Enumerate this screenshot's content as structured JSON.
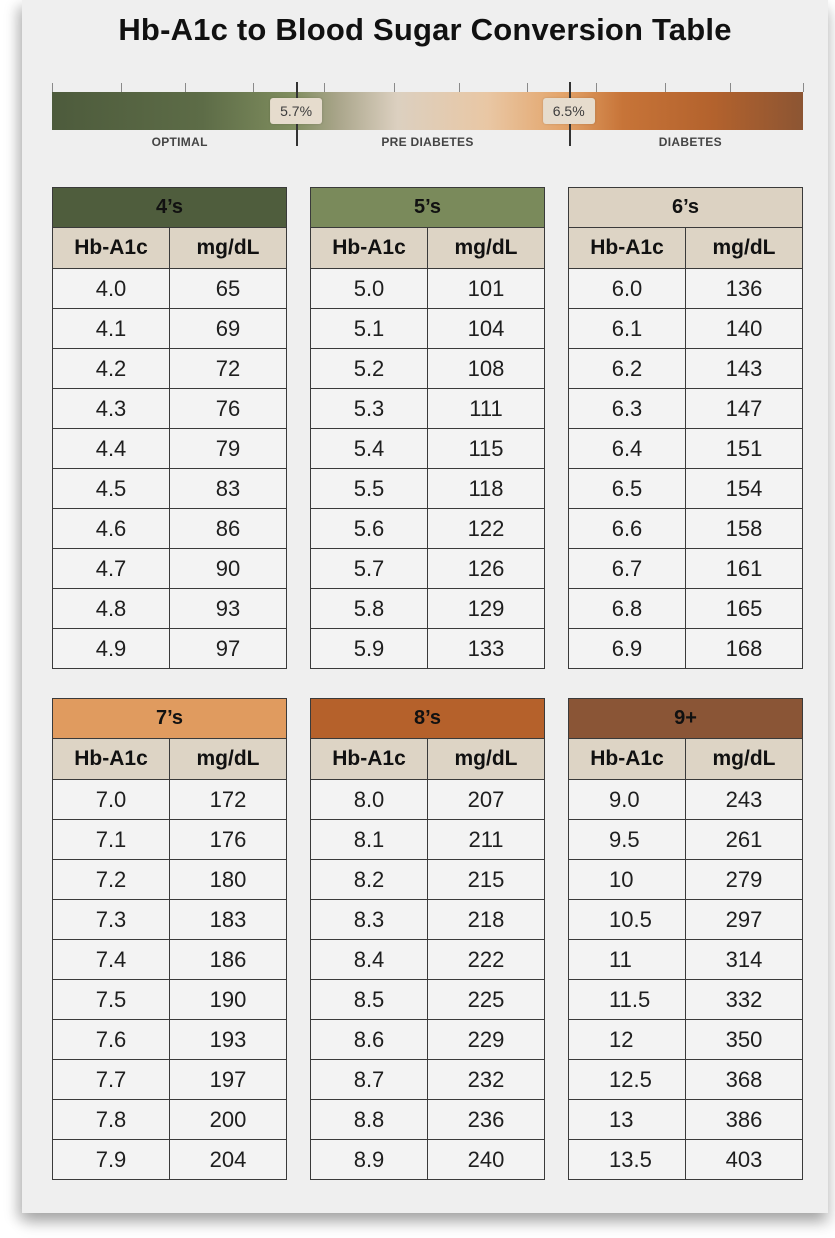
{
  "title": "Hb-A1c to Blood Sugar Conversion Table",
  "scale": {
    "markers": [
      {
        "label": "5.7%",
        "position_pct": 32.5
      },
      {
        "label": "6.5%",
        "position_pct": 68.8
      }
    ],
    "zones": [
      {
        "label": "OPTIMAL",
        "position_pct": 17
      },
      {
        "label": "PRE DIABETES",
        "position_pct": 50
      },
      {
        "label": "DIABETES",
        "position_pct": 85
      }
    ],
    "tick_positions_pct": [
      0,
      9.2,
      17.7,
      26.8,
      32.5,
      36.2,
      45.5,
      54.2,
      63.2,
      68.8,
      72.4,
      81.6,
      90.3,
      100
    ]
  },
  "tables": [
    {
      "title": "4’s",
      "header_color": "#4f5d3d",
      "columns": [
        "Hb-A1c",
        "mg/dL"
      ],
      "rows": [
        [
          "4.0",
          "65"
        ],
        [
          "4.1",
          "69"
        ],
        [
          "4.2",
          "72"
        ],
        [
          "4.3",
          "76"
        ],
        [
          "4.4",
          "79"
        ],
        [
          "4.5",
          "83"
        ],
        [
          "4.6",
          "86"
        ],
        [
          "4.7",
          "90"
        ],
        [
          "4.8",
          "93"
        ],
        [
          "4.9",
          "97"
        ]
      ]
    },
    {
      "title": "5’s",
      "header_color": "#7a8a5b",
      "columns": [
        "Hb-A1c",
        "mg/dL"
      ],
      "rows": [
        [
          "5.0",
          "101"
        ],
        [
          "5.1",
          "104"
        ],
        [
          "5.2",
          "108"
        ],
        [
          "5.3",
          "111"
        ],
        [
          "5.4",
          "115"
        ],
        [
          "5.5",
          "118"
        ],
        [
          "5.6",
          "122"
        ],
        [
          "5.7",
          "126"
        ],
        [
          "5.8",
          "129"
        ],
        [
          "5.9",
          "133"
        ]
      ]
    },
    {
      "title": "6’s",
      "header_color": "#dcd2c2",
      "columns": [
        "Hb-A1c",
        "mg/dL"
      ],
      "rows": [
        [
          "6.0",
          "136"
        ],
        [
          "6.1",
          "140"
        ],
        [
          "6.2",
          "143"
        ],
        [
          "6.3",
          "147"
        ],
        [
          "6.4",
          "151"
        ],
        [
          "6.5",
          "154"
        ],
        [
          "6.6",
          "158"
        ],
        [
          "6.7",
          "161"
        ],
        [
          "6.8",
          "165"
        ],
        [
          "6.9",
          "168"
        ]
      ]
    },
    {
      "title": "7’s",
      "header_color": "#e09b5f",
      "columns": [
        "Hb-A1c",
        "mg/dL"
      ],
      "rows": [
        [
          "7.0",
          "172"
        ],
        [
          "7.1",
          "176"
        ],
        [
          "7.2",
          "180"
        ],
        [
          "7.3",
          "183"
        ],
        [
          "7.4",
          "186"
        ],
        [
          "7.5",
          "190"
        ],
        [
          "7.6",
          "193"
        ],
        [
          "7.7",
          "197"
        ],
        [
          "7.8",
          "200"
        ],
        [
          "7.9",
          "204"
        ]
      ]
    },
    {
      "title": "8’s",
      "header_color": "#b5612b",
      "columns": [
        "Hb-A1c",
        "mg/dL"
      ],
      "rows": [
        [
          "8.0",
          "207"
        ],
        [
          "8.1",
          "211"
        ],
        [
          "8.2",
          "215"
        ],
        [
          "8.3",
          "218"
        ],
        [
          "8.4",
          "222"
        ],
        [
          "8.5",
          "225"
        ],
        [
          "8.6",
          "229"
        ],
        [
          "8.7",
          "232"
        ],
        [
          "8.8",
          "236"
        ],
        [
          "8.9",
          "240"
        ]
      ]
    },
    {
      "title": "9+",
      "header_color": "#8a5536",
      "columns": [
        "Hb-A1c",
        "mg/dL"
      ],
      "rows": [
        [
          "9.0",
          "243"
        ],
        [
          "9.5",
          "261"
        ],
        [
          "10",
          "279"
        ],
        [
          "10.5",
          "297"
        ],
        [
          "11",
          "314"
        ],
        [
          "11.5",
          "332"
        ],
        [
          "12",
          "350"
        ],
        [
          "12.5",
          "368"
        ],
        [
          "13",
          "386"
        ],
        [
          "13.5",
          "403"
        ]
      ]
    }
  ]
}
